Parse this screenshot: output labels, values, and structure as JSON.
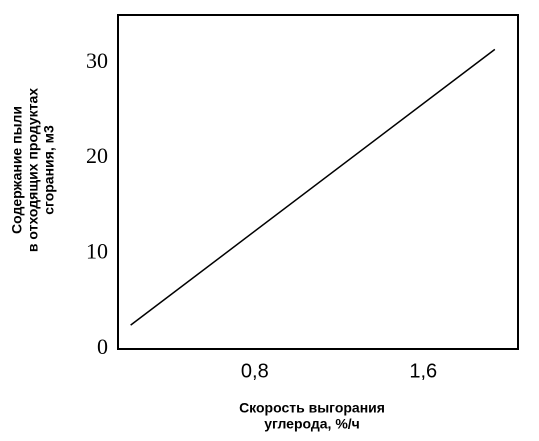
{
  "chart_data": {
    "type": "line",
    "y_label": [
      "Содержание пыли",
      "в отходящих продуктах",
      "сгорания, м3"
    ],
    "x_label": [
      "Скорость выгорания",
      "углерода, %/ч"
    ],
    "x": [
      0.21,
      1.94
    ],
    "values": [
      2.5,
      31.4
    ],
    "color": "#000000",
    "xlim": [
      0.15,
      2.05
    ],
    "xticks": [
      {
        "value": 0.8,
        "label": "0,8"
      },
      {
        "value": 1.6,
        "label": "1,6"
      }
    ],
    "ylim": [
      0,
      35
    ],
    "yticks": [
      0,
      10,
      20,
      30
    ],
    "grid": false
  }
}
